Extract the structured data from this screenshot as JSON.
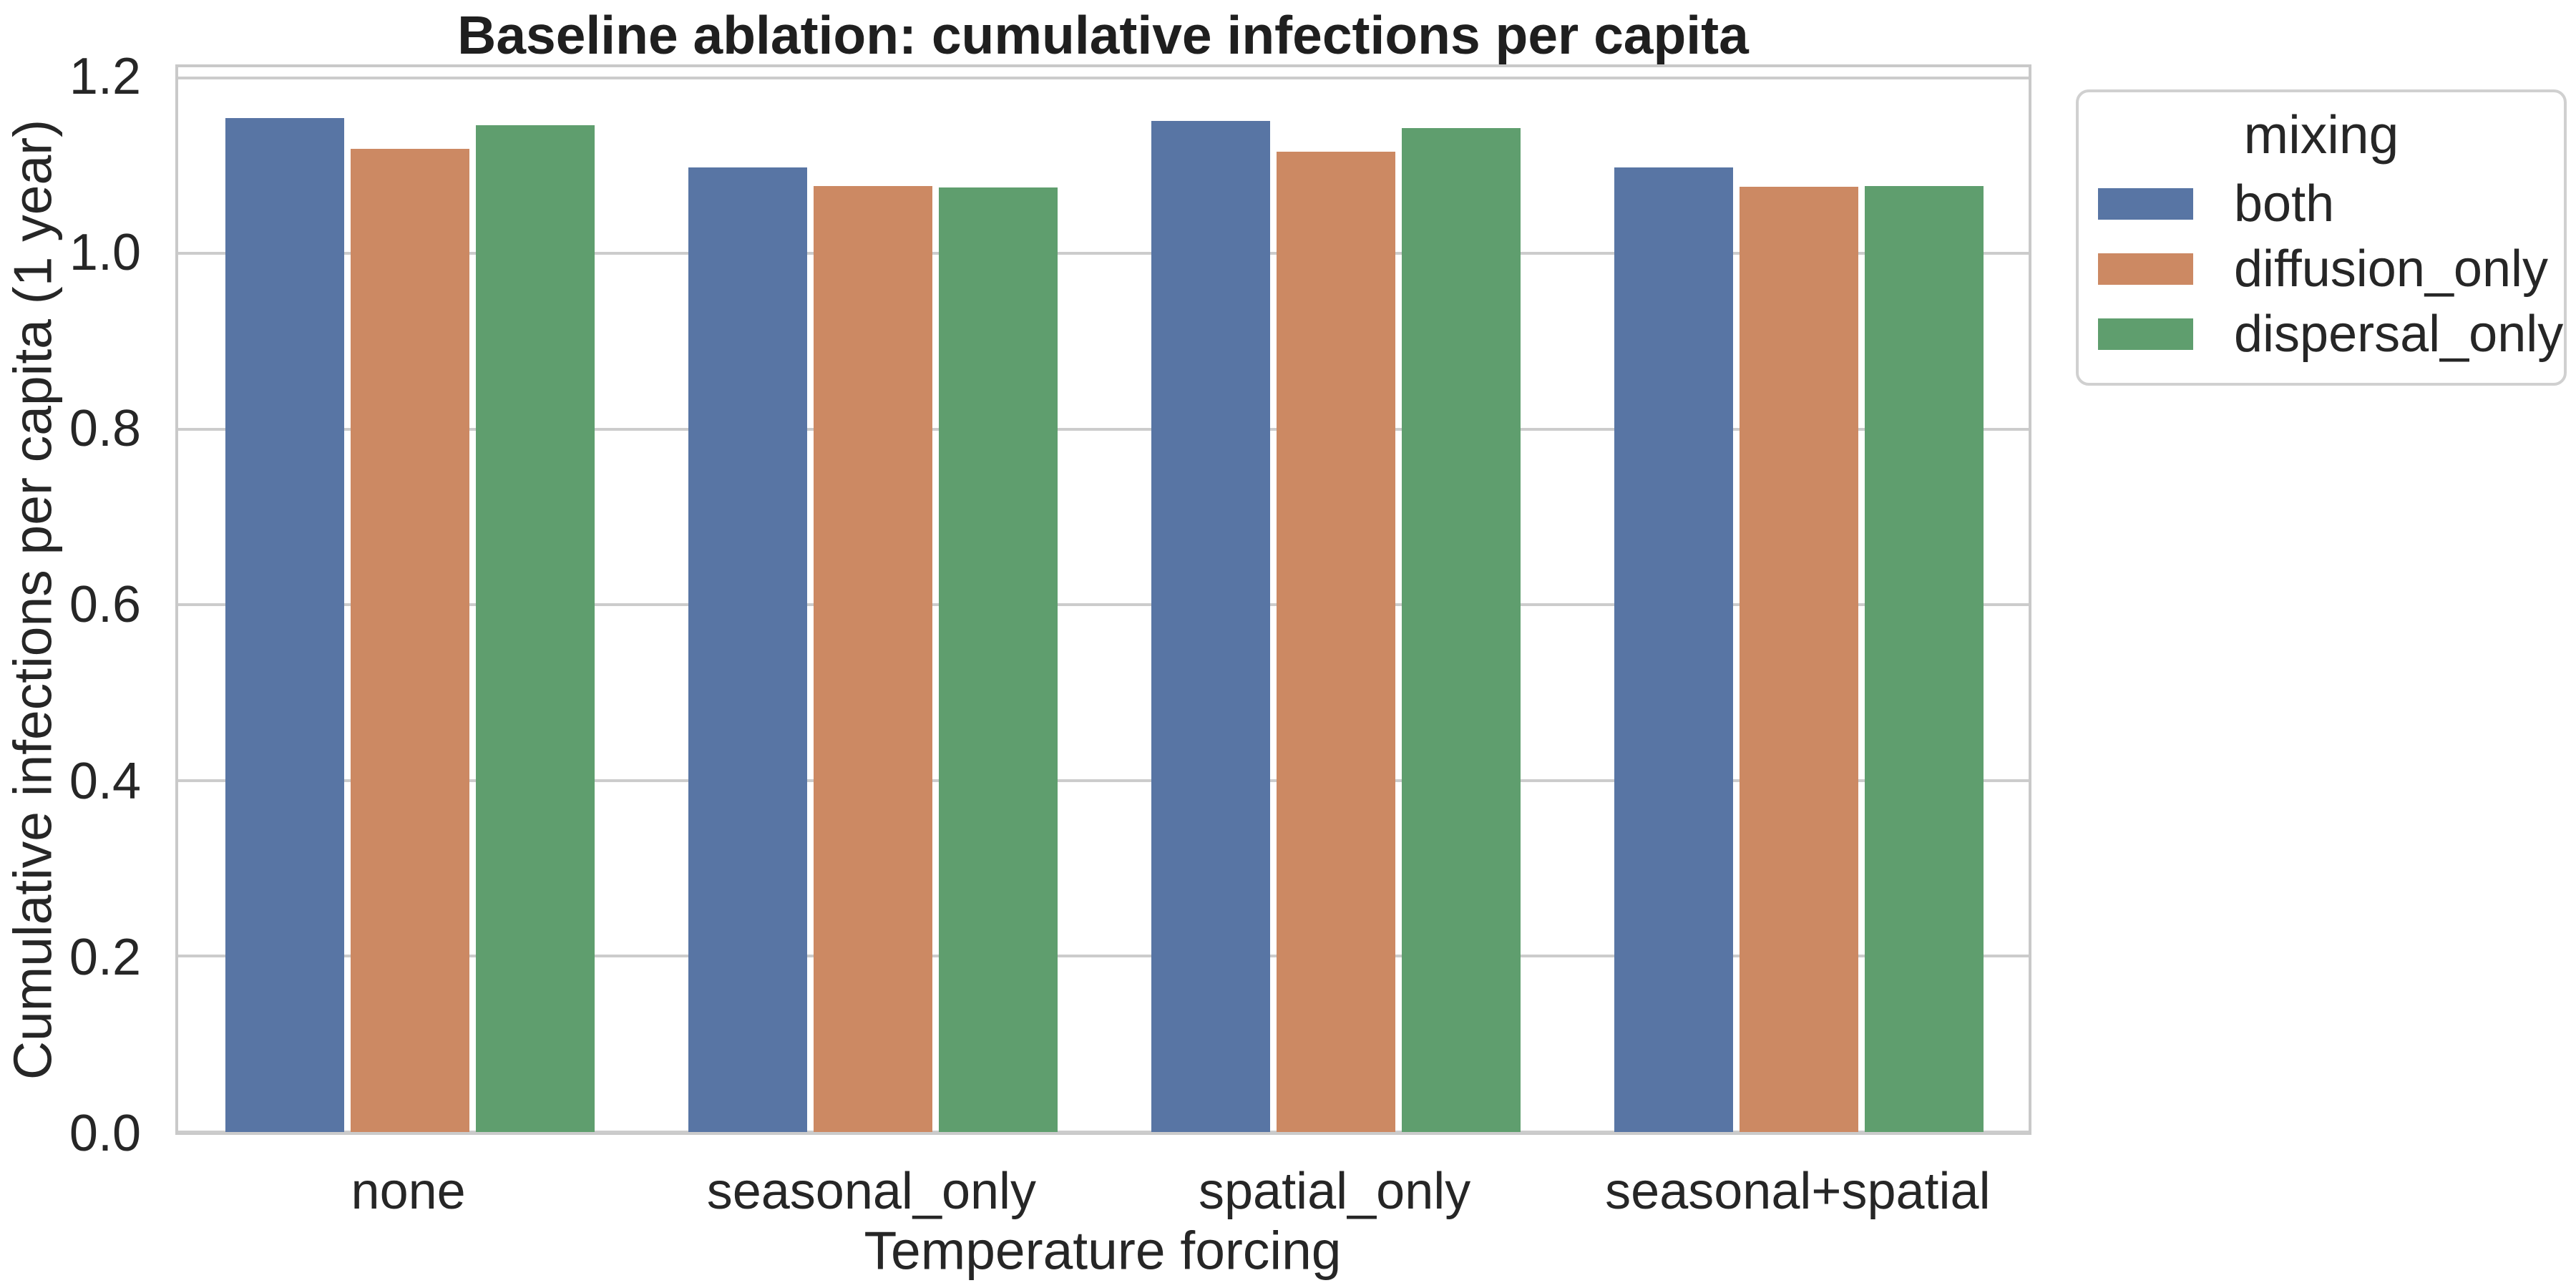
{
  "figure": {
    "title": "Baseline ablation: cumulative infections per capita"
  },
  "chart_data": {
    "type": "bar",
    "title": "Baseline ablation: cumulative infections per capita",
    "xlabel": "Temperature forcing",
    "ylabel": "Cumulative infections per capita (1 year)",
    "categories": [
      "none",
      "seasonal_only",
      "spatial_only",
      "seasonal+spatial"
    ],
    "series": [
      {
        "name": "both",
        "color": "#5875A4",
        "values": [
          1.154,
          1.098,
          1.151,
          1.098
        ]
      },
      {
        "name": "diffusion_only",
        "color": "#CC8963",
        "values": [
          1.119,
          1.077,
          1.116,
          1.076
        ]
      },
      {
        "name": "dispersal_only",
        "color": "#5F9E6E",
        "values": [
          1.146,
          1.075,
          1.143,
          1.077
        ]
      }
    ],
    "ylim": [
      0,
      1.212
    ],
    "yticks": [
      0.0,
      0.2,
      0.4,
      0.6,
      0.8,
      1.0,
      1.2
    ],
    "grid": true,
    "legend_title": "mixing",
    "legend_position": "upper right outside"
  },
  "legend": {
    "title": "mixing",
    "entries": [
      "both",
      "diffusion_only",
      "dispersal_only"
    ]
  },
  "colors": {
    "bar_blue": "#5875A4",
    "bar_orange": "#CC8963",
    "bar_green": "#5F9E6E",
    "grid": "#cccccc",
    "spine": "#c9c9c9",
    "text": "#262626",
    "title_text": "#1f1f1f",
    "background": "#ffffff"
  }
}
